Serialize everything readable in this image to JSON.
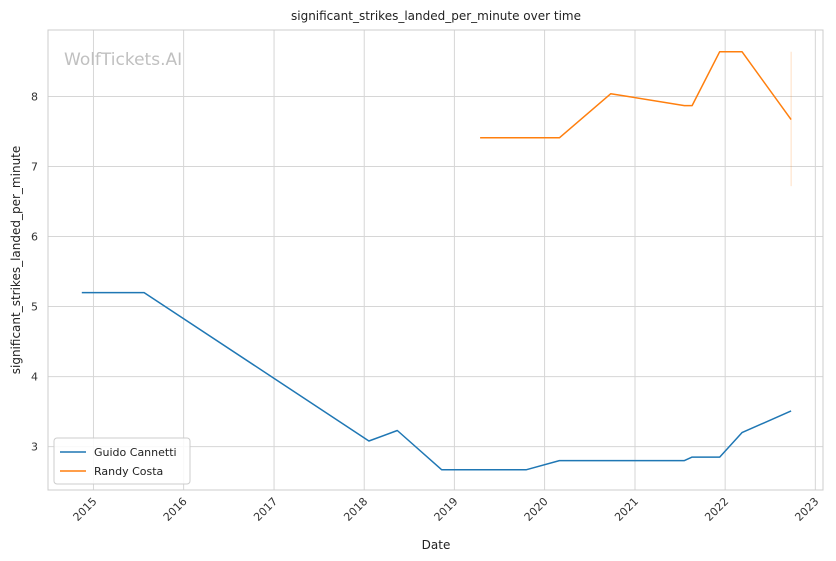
{
  "chart_data": {
    "type": "line",
    "title": "significant_strikes_landed_per_minute over time",
    "xlabel": "Date",
    "ylabel": "significant_strikes_landed_per_minute",
    "watermark": "WolfTickets.AI",
    "xlim": [
      "2014-07-01",
      "2023-02-01"
    ],
    "ylim": [
      2.38,
      8.95
    ],
    "x_ticks": [
      {
        "date": "2015-01-01",
        "label": "2015"
      },
      {
        "date": "2016-01-01",
        "label": "2016"
      },
      {
        "date": "2017-01-01",
        "label": "2017"
      },
      {
        "date": "2018-01-01",
        "label": "2018"
      },
      {
        "date": "2019-01-01",
        "label": "2019"
      },
      {
        "date": "2020-01-01",
        "label": "2020"
      },
      {
        "date": "2021-01-01",
        "label": "2021"
      },
      {
        "date": "2022-01-01",
        "label": "2022"
      },
      {
        "date": "2023-01-01",
        "label": "2023"
      }
    ],
    "y_ticks": [
      3,
      4,
      5,
      6,
      7,
      8
    ],
    "grid": true,
    "legend": "lower-left",
    "series": [
      {
        "name": "Guido Cannetti",
        "color": "#1f77b4",
        "points": [
          {
            "x": "2014-11-15",
            "y": 5.2
          },
          {
            "x": "2015-07-25",
            "y": 5.2
          },
          {
            "x": "2018-01-20",
            "y": 3.08
          },
          {
            "x": "2018-05-15",
            "y": 3.23
          },
          {
            "x": "2018-11-10",
            "y": 2.67
          },
          {
            "x": "2019-10-20",
            "y": 2.67
          },
          {
            "x": "2020-03-01",
            "y": 2.8
          },
          {
            "x": "2021-07-20",
            "y": 2.8
          },
          {
            "x": "2021-08-20",
            "y": 2.85
          },
          {
            "x": "2021-12-10",
            "y": 2.85
          },
          {
            "x": "2022-03-10",
            "y": 3.2
          },
          {
            "x": "2022-09-25",
            "y": 3.51
          }
        ]
      },
      {
        "name": "Randy Costa",
        "color": "#ff7f0e",
        "points": [
          {
            "x": "2019-04-15",
            "y": 7.41
          },
          {
            "x": "2020-03-01",
            "y": 7.41
          },
          {
            "x": "2020-09-25",
            "y": 8.04
          },
          {
            "x": "2021-07-20",
            "y": 7.87
          },
          {
            "x": "2021-08-20",
            "y": 7.87
          },
          {
            "x": "2021-12-10",
            "y": 8.64
          },
          {
            "x": "2022-03-10",
            "y": 8.64
          },
          {
            "x": "2022-09-25",
            "y": 7.67
          }
        ],
        "error_bar": {
          "x": "2022-09-25",
          "low": 6.72,
          "high": 8.64
        }
      }
    ]
  }
}
